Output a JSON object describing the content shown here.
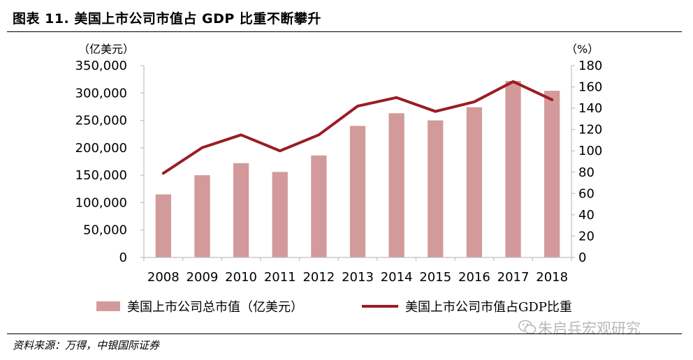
{
  "figure": {
    "title": "图表 11. 美国上市公司市值占 GDP 比重不断攀升",
    "source": "资料来源：万得，中银国际证券",
    "watermark": "朱启兵宏观研究"
  },
  "colors": {
    "bar": "#d29a9a",
    "line": "#9b1c23",
    "axis": "#bfbfbf"
  },
  "chart_data": {
    "type": "bar",
    "categories": [
      "2008",
      "2009",
      "2010",
      "2011",
      "2012",
      "2013",
      "2014",
      "2015",
      "2016",
      "2017",
      "2018"
    ],
    "series": [
      {
        "name": "美国上市公司总市值（亿美元）",
        "type": "bar",
        "axis": "left",
        "values": [
          115000,
          150000,
          172000,
          156000,
          186000,
          240000,
          263000,
          250000,
          274000,
          322000,
          304000
        ]
      },
      {
        "name": "美国上市公司市值占GDP比重",
        "type": "line",
        "axis": "right",
        "values": [
          79,
          103,
          115,
          100,
          115,
          142,
          150,
          137,
          146,
          165,
          148
        ]
      }
    ],
    "y_left": {
      "unit_label": "（亿美元）",
      "ylim": [
        0,
        350000
      ],
      "ticks": [
        "0",
        "50,000",
        "100,000",
        "150,000",
        "200,000",
        "250,000",
        "300,000",
        "350,000"
      ]
    },
    "y_right": {
      "unit_label": "（%）",
      "ylim": [
        0,
        180
      ],
      "ticks": [
        "0",
        "20",
        "40",
        "60",
        "80",
        "100",
        "120",
        "140",
        "160",
        "180"
      ]
    },
    "grid": false,
    "legend_position": "bottom"
  }
}
